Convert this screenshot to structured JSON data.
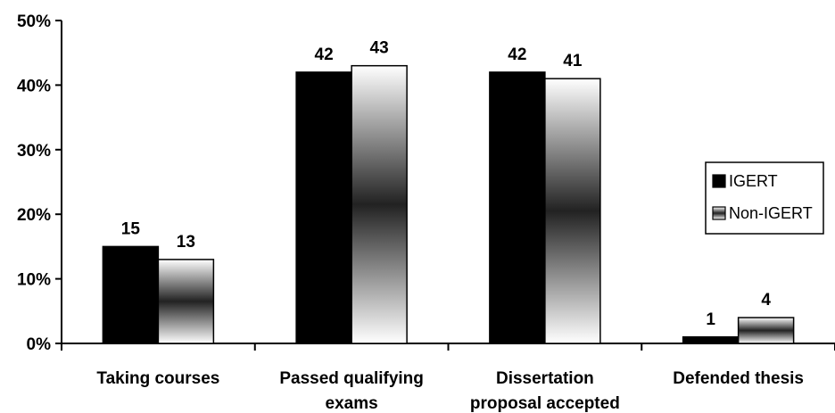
{
  "chart_data": {
    "type": "bar",
    "categories": [
      [
        "Taking courses"
      ],
      [
        "Passed qualifying",
        "exams"
      ],
      [
        "Dissertation",
        "proposal accepted"
      ],
      [
        "Defended thesis"
      ]
    ],
    "series": [
      {
        "name": "IGERT",
        "values": [
          15,
          42,
          42,
          1
        ],
        "labels": [
          "15",
          "42",
          "42",
          "1"
        ],
        "fill": "solid-black"
      },
      {
        "name": "Non-IGERT",
        "values": [
          13,
          43,
          41,
          4
        ],
        "labels": [
          "13",
          "43",
          "41",
          "4"
        ],
        "fill": "white-black-white-gradient"
      }
    ],
    "yticks": [
      "0%",
      "10%",
      "20%",
      "30%",
      "40%",
      "50%"
    ],
    "ylim": [
      0,
      50
    ],
    "title": "",
    "xlabel": "",
    "ylabel": "",
    "grid": false,
    "legend_position": "right",
    "colors": {
      "igert": "#000000",
      "non_igert_edge": "#ffffff",
      "non_igert_center": "#222222",
      "axis": "#000000"
    }
  }
}
